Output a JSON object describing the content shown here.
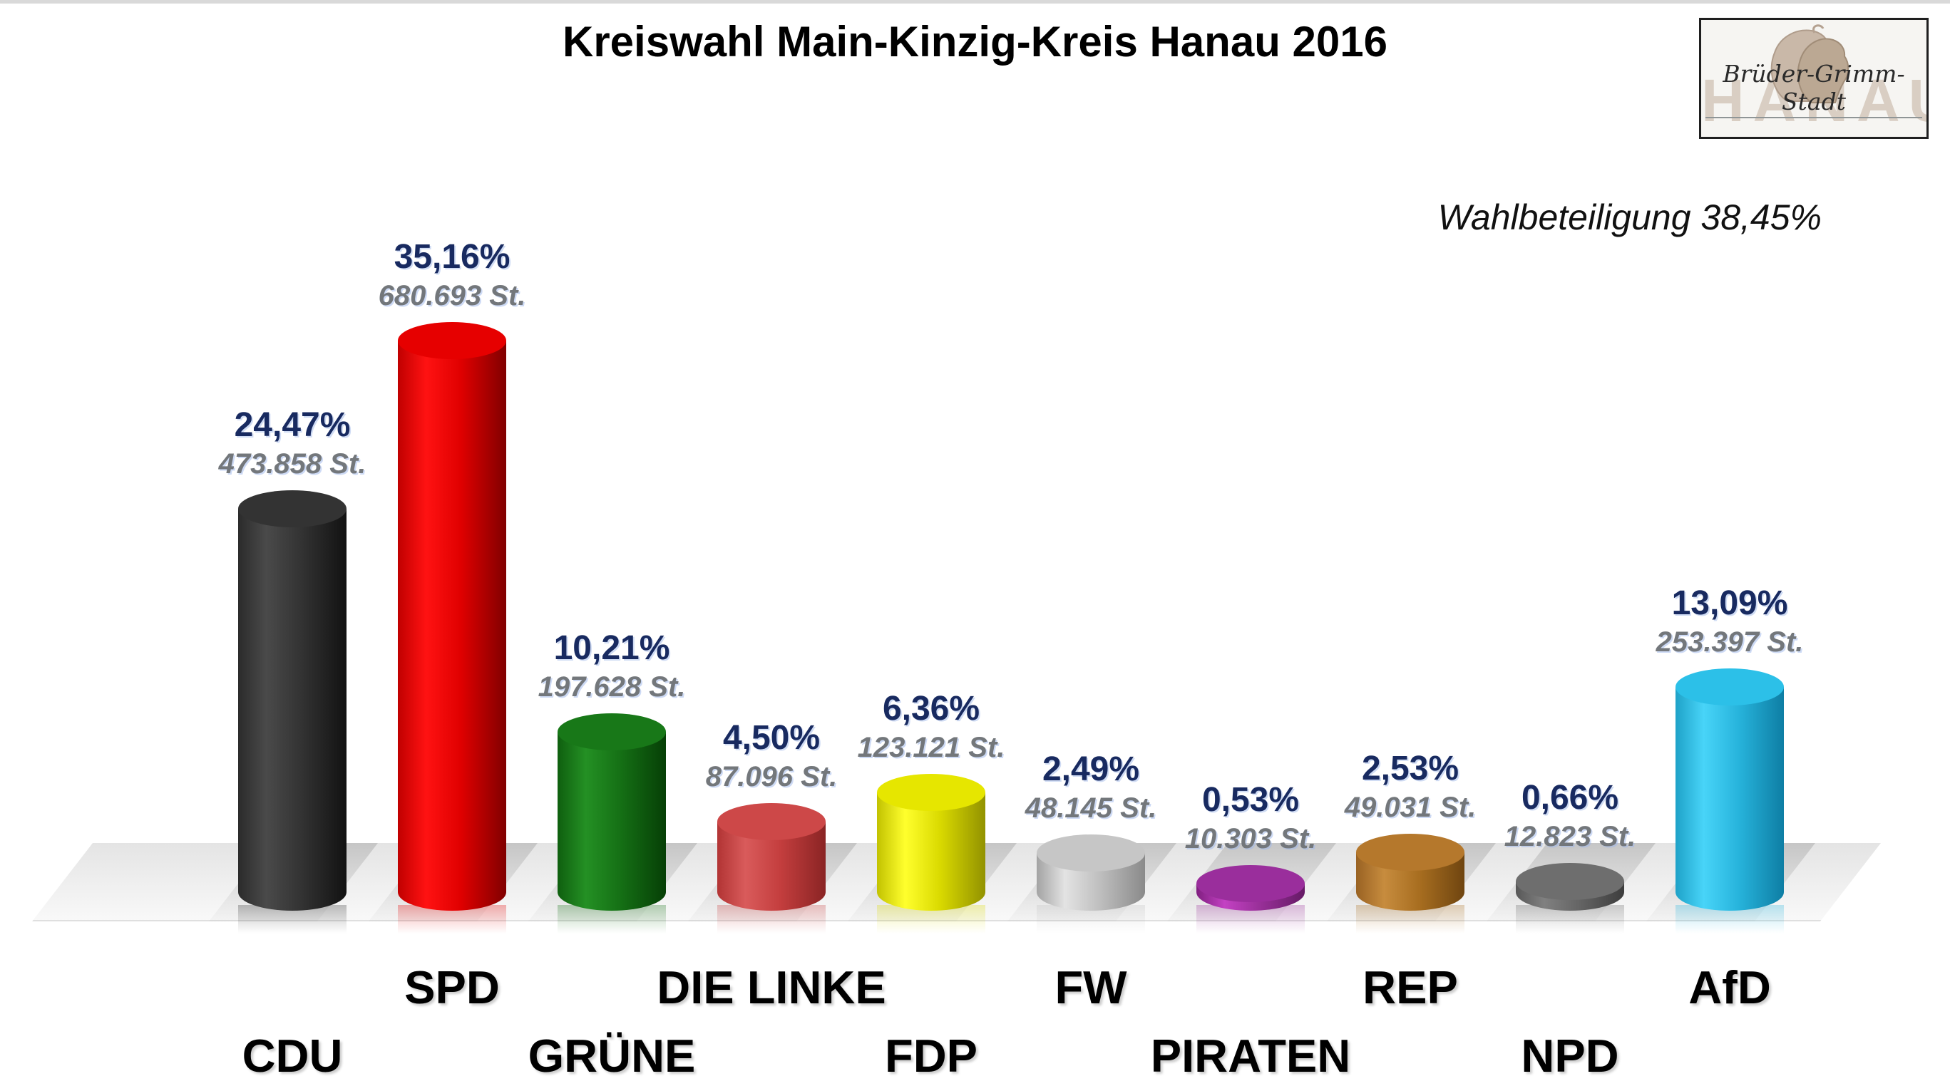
{
  "title": "Kreiswahl Main-Kinzig-Kreis Hanau 2016",
  "turnout": {
    "text": "Wahlbeteiligung 38,45%"
  },
  "logo": {
    "city": "HANAU",
    "subtitle": "Brüder-Grimm-Stadt"
  },
  "chart_data": {
    "type": "bar",
    "title": "Kreiswahl Main-Kinzig-Kreis Hanau 2016",
    "turnout_percent": 38.45,
    "value_unit": "St.",
    "ylim": [
      0,
      40
    ],
    "grid": false,
    "legend": "none",
    "categories": [
      "CDU",
      "SPD",
      "GRÜNE",
      "DIE LINKE",
      "FDP",
      "FW",
      "PIRATEN",
      "REP",
      "NPD",
      "AfD"
    ],
    "values": [
      24.47,
      35.16,
      10.21,
      4.5,
      6.36,
      2.49,
      0.53,
      2.53,
      0.66,
      13.09
    ],
    "votes": [
      473858,
      680693,
      197628,
      87096,
      123121,
      48145,
      10303,
      49031,
      12823,
      253397
    ],
    "series": [
      {
        "key": "cdu",
        "label": "CDU",
        "percent": 24.47,
        "percent_label": "24,47%",
        "votes": 473858,
        "votes_label": "473.858 St.",
        "label_row": "lower",
        "color": {
          "top": "#333333",
          "left": "#2b2b2b",
          "highlight": "#4a4a4a",
          "mid": "#333333",
          "right": "#121212"
        }
      },
      {
        "key": "spd",
        "label": "SPD",
        "percent": 35.16,
        "percent_label": "35,16%",
        "votes": 680693,
        "votes_label": "680.693 St.",
        "label_row": "upper",
        "color": {
          "top": "#e60000",
          "left": "#c00000",
          "highlight": "#ff1212",
          "mid": "#e00000",
          "right": "#800000"
        }
      },
      {
        "key": "gruene",
        "label": "GRÜNE",
        "percent": 10.21,
        "percent_label": "10,21%",
        "votes": 197628,
        "votes_label": "197.628 St.",
        "label_row": "lower",
        "color": {
          "top": "#187818",
          "left": "#0f5f0f",
          "highlight": "#249024",
          "mid": "#157015",
          "right": "#063f06"
        }
      },
      {
        "key": "die-linke",
        "label": "DIE LINKE",
        "percent": 4.5,
        "percent_label": "4,50%",
        "votes": 87096,
        "votes_label": "87.096 St.",
        "label_row": "upper",
        "color": {
          "top": "#cd4848",
          "left": "#b23434",
          "highlight": "#d95b5b",
          "mid": "#c43e3e",
          "right": "#8a2424"
        }
      },
      {
        "key": "fdp",
        "label": "FDP",
        "percent": 6.36,
        "percent_label": "6,36%",
        "votes": 123121,
        "votes_label": "123.121 St.",
        "label_row": "lower",
        "color": {
          "top": "#e6e600",
          "left": "#c2c200",
          "highlight": "#ffff2d",
          "mid": "#dada00",
          "right": "#929200"
        }
      },
      {
        "key": "fw",
        "label": "FW",
        "percent": 2.49,
        "percent_label": "2,49%",
        "votes": 48145,
        "votes_label": "48.145 St.",
        "label_row": "upper",
        "color": {
          "top": "#c6c6c6",
          "left": "#a3a3a3",
          "highlight": "#e3e3e3",
          "mid": "#bfbfbf",
          "right": "#8a8a8a"
        }
      },
      {
        "key": "piraten",
        "label": "PIRATEN",
        "percent": 0.53,
        "percent_label": "0,53%",
        "votes": 10303,
        "votes_label": "10.303 St.",
        "label_row": "lower",
        "color": {
          "top": "#9a2e9c",
          "left": "#801f80",
          "highlight": "#c341c3",
          "mid": "#993099",
          "right": "#661a66"
        }
      },
      {
        "key": "rep",
        "label": "REP",
        "percent": 2.53,
        "percent_label": "2,53%",
        "votes": 49031,
        "votes_label": "49.031 St.",
        "label_row": "upper",
        "color": {
          "top": "#b5782c",
          "left": "#996223",
          "highlight": "#c78c3e",
          "mid": "#a86e20",
          "right": "#6f4510"
        }
      },
      {
        "key": "npd",
        "label": "NPD",
        "percent": 0.66,
        "percent_label": "0,66%",
        "votes": 12823,
        "votes_label": "12.823 St.",
        "label_row": "lower",
        "color": {
          "top": "#6e6e6e",
          "left": "#585858",
          "highlight": "#808080",
          "mid": "#656565",
          "right": "#3d3d3d"
        }
      },
      {
        "key": "afd",
        "label": "AfD",
        "percent": 13.09,
        "percent_label": "13,09%",
        "votes": 253397,
        "votes_label": "253.397 St.",
        "label_row": "upper",
        "color": {
          "top": "#2cc0e8",
          "left": "#1ea2c8",
          "highlight": "#48d4f8",
          "mid": "#27b4dc",
          "right": "#0e7ea4"
        }
      }
    ]
  }
}
